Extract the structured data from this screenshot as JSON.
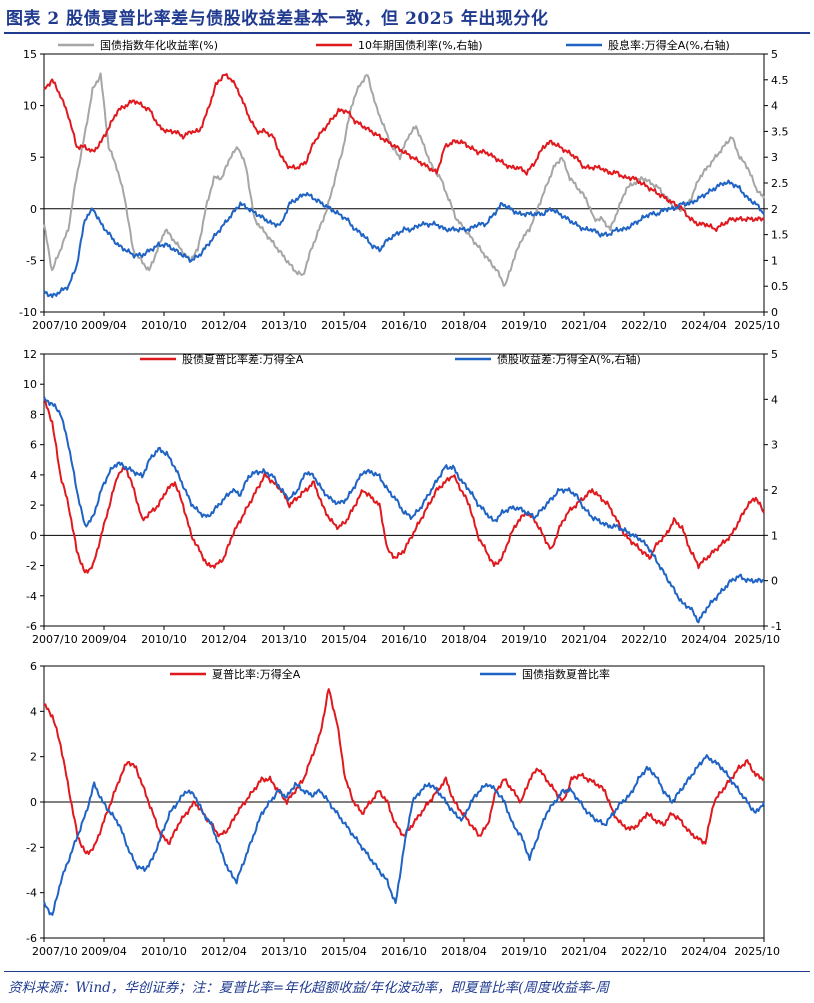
{
  "title": "图表 2   股债夏普比率差与债股收益差基本一致，但 2025 年出现分化",
  "footer": "资料来源：Wind，华创证券；注：夏普比率=年化超额收益/年化波动率，即夏普比率(周度收益率-周",
  "chart_data": [
    {
      "type": "line",
      "x_ticks": [
        "2007/10",
        "2009/04",
        "2010/10",
        "2012/04",
        "2013/10",
        "2015/04",
        "2016/10",
        "2018/04",
        "2019/10",
        "2021/04",
        "2022/10",
        "2024/04",
        "2025/10"
      ],
      "ylim_left": [
        -10,
        15
      ],
      "yticks_left": [
        -10,
        -5,
        0,
        5,
        10,
        15
      ],
      "ylim_right": [
        0,
        5
      ],
      "yticks_right": [
        "0",
        "0.5",
        "1",
        "1.5",
        "2",
        "2.5",
        "3",
        "3.5",
        "4",
        "4.5",
        "5"
      ],
      "colors": {
        "series1": "#a6a6a6",
        "series2": "#e0191e",
        "series3": "#1f63c4"
      },
      "series": [
        {
          "name": "国债指数年化收益率(%)",
          "axis": "left",
          "color_key": "series1",
          "values": [
            -1.5,
            -6,
            -4,
            -2,
            3,
            7,
            11.5,
            13,
            6,
            4,
            1,
            -4,
            -5,
            -6,
            -4,
            -2,
            -3,
            -4,
            -5,
            -4,
            0,
            3,
            3,
            5,
            6,
            4,
            -1,
            -2,
            -3,
            -4,
            -5,
            -6,
            -6.5,
            -4,
            -2,
            0,
            3,
            6,
            10,
            12,
            13,
            10,
            8,
            6,
            5,
            7,
            8,
            6,
            4,
            3,
            1,
            -1,
            -2,
            -3,
            -4,
            -5,
            -6,
            -7.5,
            -5,
            -3,
            -2,
            0,
            2,
            4,
            5,
            3,
            2,
            1,
            -1,
            -1,
            -2,
            0,
            2,
            2.5,
            3,
            2.5,
            2,
            1,
            0,
            0,
            1,
            3,
            4,
            5,
            6,
            7,
            5,
            4,
            2,
            1
          ]
        },
        {
          "name": "10年期国债利率(%,右轴)",
          "axis": "right",
          "color_key": "series2",
          "values": [
            4.3,
            4.5,
            4.2,
            3.8,
            3.2,
            3.2,
            3.1,
            3.3,
            3.6,
            3.9,
            4.0,
            4.1,
            4.0,
            3.9,
            3.6,
            3.5,
            3.5,
            3.4,
            3.5,
            3.5,
            3.9,
            4.4,
            4.6,
            4.5,
            4.2,
            3.8,
            3.5,
            3.5,
            3.4,
            3.0,
            2.8,
            2.8,
            2.9,
            3.3,
            3.5,
            3.7,
            3.9,
            3.9,
            3.7,
            3.6,
            3.5,
            3.4,
            3.3,
            3.2,
            3.1,
            3.0,
            2.9,
            2.8,
            2.7,
            3.2,
            3.3,
            3.3,
            3.2,
            3.1,
            3.1,
            3.0,
            2.9,
            2.8,
            2.8,
            2.7,
            2.9,
            3.2,
            3.3,
            3.2,
            3.1,
            3.0,
            2.8,
            2.8,
            2.8,
            2.7,
            2.7,
            2.6,
            2.6,
            2.5,
            2.4,
            2.3,
            2.2,
            2.1,
            2.0,
            1.8,
            1.7,
            1.7,
            1.6,
            1.7,
            1.8,
            1.8,
            1.8,
            1.8,
            1.8
          ]
        },
        {
          "name": "股息率:万得全A(%,右轴)",
          "axis": "right",
          "color_key": "series3",
          "values": [
            0.4,
            0.3,
            0.4,
            0.5,
            0.9,
            1.8,
            2.0,
            1.7,
            1.5,
            1.3,
            1.2,
            1.1,
            1.1,
            1.2,
            1.3,
            1.3,
            1.2,
            1.1,
            1.0,
            1.1,
            1.3,
            1.5,
            1.7,
            1.9,
            2.1,
            2.0,
            1.9,
            1.8,
            1.7,
            1.7,
            2.1,
            2.2,
            2.3,
            2.2,
            2.1,
            2.0,
            1.9,
            1.8,
            1.6,
            1.5,
            1.3,
            1.2,
            1.4,
            1.5,
            1.6,
            1.6,
            1.7,
            1.7,
            1.7,
            1.6,
            1.6,
            1.6,
            1.6,
            1.7,
            1.7,
            1.9,
            2.1,
            2.0,
            1.9,
            1.9,
            1.9,
            1.9,
            2.0,
            1.9,
            1.8,
            1.7,
            1.6,
            1.6,
            1.5,
            1.5,
            1.6,
            1.6,
            1.7,
            1.8,
            1.9,
            1.9,
            2.0,
            2.0,
            2.1,
            2.1,
            2.2,
            2.3,
            2.4,
            2.5,
            2.5,
            2.4,
            2.2,
            2.1,
            1.9
          ]
        }
      ]
    },
    {
      "type": "line",
      "x_ticks": [
        "2007/10",
        "2009/04",
        "2010/10",
        "2012/04",
        "2013/10",
        "2015/04",
        "2016/10",
        "2018/04",
        "2019/10",
        "2021/04",
        "2022/10",
        "2024/04",
        "2025/10"
      ],
      "ylim_left": [
        -6,
        12
      ],
      "yticks_left": [
        -6,
        -4,
        -2,
        0,
        2,
        4,
        6,
        8,
        10,
        12
      ],
      "ylim_right": [
        -1,
        5
      ],
      "yticks_right": [
        "-1",
        "0",
        "1",
        "2",
        "3",
        "4",
        "5"
      ],
      "colors": {
        "series1": "#e0191e",
        "series2": "#1f63c4"
      },
      "series": [
        {
          "name": "股债夏普比率差:万得全A",
          "axis": "left",
          "color_key": "series1",
          "values": [
            9.0,
            7.5,
            4,
            2,
            -1,
            -2.5,
            -2,
            0,
            2,
            4,
            4.5,
            3,
            1,
            1.5,
            2,
            3,
            3.5,
            2,
            0,
            -1,
            -2,
            -2,
            -1.5,
            0,
            1,
            2,
            3,
            4,
            3.5,
            3,
            2,
            2.5,
            3,
            3.5,
            2,
            1,
            0.5,
            1,
            2,
            3,
            2.5,
            2,
            -1,
            -1.5,
            -1,
            0,
            1,
            2,
            3,
            3.5,
            4,
            3,
            2,
            0,
            -1,
            -2,
            -1.5,
            0,
            1,
            1.5,
            1,
            0,
            -1,
            0.5,
            1.5,
            2,
            2.5,
            3,
            2.5,
            2,
            1,
            0,
            -0.5,
            -1,
            -1.5,
            -0.5,
            0,
            1,
            0.5,
            -1,
            -2,
            -1.5,
            -1,
            -0.5,
            0,
            1,
            2,
            2.5,
            1.5
          ]
        },
        {
          "name": "债股收益差:万得全A(%,右轴)",
          "axis": "right",
          "color_key": "series2",
          "values": [
            4.0,
            3.9,
            3.7,
            3.0,
            2.0,
            1.2,
            1.4,
            2.0,
            2.4,
            2.6,
            2.5,
            2.4,
            2.3,
            2.7,
            2.9,
            2.8,
            2.5,
            2.1,
            1.7,
            1.5,
            1.4,
            1.6,
            1.8,
            2.0,
            1.9,
            2.3,
            2.4,
            2.4,
            2.3,
            2.0,
            1.8,
            2.0,
            2.4,
            2.3,
            2.0,
            1.8,
            1.7,
            1.8,
            2.1,
            2.4,
            2.4,
            2.3,
            2.0,
            1.8,
            1.5,
            1.4,
            1.6,
            1.9,
            2.2,
            2.5,
            2.5,
            2.2,
            2.0,
            1.7,
            1.5,
            1.3,
            1.5,
            1.6,
            1.6,
            1.5,
            1.4,
            1.6,
            1.8,
            2.0,
            2.0,
            1.9,
            1.6,
            1.4,
            1.3,
            1.2,
            1.2,
            1.1,
            1.0,
            0.9,
            0.7,
            0.4,
            0.1,
            -0.2,
            -0.5,
            -0.6,
            -0.9,
            -0.6,
            -0.4,
            -0.2,
            0.0,
            0.1,
            0.0,
            0.0,
            0.0
          ]
        }
      ]
    },
    {
      "type": "line",
      "x_ticks": [
        "2007/10",
        "2009/04",
        "2010/10",
        "2012/04",
        "2013/10",
        "2015/04",
        "2016/10",
        "2018/04",
        "2019/10",
        "2021/04",
        "2022/10",
        "2024/04",
        "2025/10"
      ],
      "ylim_left": [
        -6,
        6
      ],
      "yticks_left": [
        -6,
        -4,
        -2,
        0,
        2,
        4,
        6
      ],
      "colors": {
        "series1": "#e0191e",
        "series2": "#1f63c4"
      },
      "series": [
        {
          "name": "夏普比率:万得全A",
          "axis": "left",
          "color_key": "series1",
          "values": [
            4.3,
            3.8,
            2.5,
            0.5,
            -1.5,
            -2.3,
            -2,
            -1,
            0,
            1,
            1.8,
            1.5,
            0.5,
            -0.5,
            -1.5,
            -1.8,
            -1,
            -0.5,
            0,
            -0.5,
            -1,
            -1.5,
            -1.2,
            -0.5,
            0,
            0.5,
            1,
            1,
            0.5,
            0,
            0.5,
            1,
            2,
            3,
            5,
            3.5,
            1,
            0,
            -0.5,
            0,
            0.5,
            0,
            -1,
            -1.5,
            -1,
            -0.5,
            0,
            0.5,
            1,
            0,
            -0.5,
            -1,
            -1.5,
            -1,
            0.5,
            1,
            0.5,
            0,
            1,
            1.5,
            1,
            0.5,
            0,
            1,
            1.2,
            1,
            0.8,
            0.5,
            -0.5,
            -1,
            -1.2,
            -1,
            -0.5,
            -0.8,
            -1,
            -0.5,
            -0.8,
            -1.3,
            -1.6,
            -1.8,
            0,
            0.5,
            1,
            1.5,
            1.8,
            1.2,
            1.0
          ]
        },
        {
          "name": "国债指数夏普比率",
          "axis": "left",
          "color_key": "series2",
          "values": [
            -4.5,
            -5,
            -3.5,
            -2.5,
            -1.5,
            -0.5,
            0.8,
            0,
            -0.5,
            -1,
            -2,
            -2.8,
            -3,
            -2.5,
            -1.5,
            -0.5,
            0,
            0.5,
            0.3,
            -0.5,
            -1,
            -2,
            -3,
            -3.5,
            -2.5,
            -1.5,
            -0.5,
            0,
            0.5,
            0.2,
            0.8,
            0.5,
            0.3,
            0.5,
            0,
            -0.5,
            -1,
            -1.5,
            -2,
            -2.5,
            -3,
            -3.5,
            -4.5,
            -2,
            0,
            0.5,
            0.8,
            0.5,
            0,
            -0.5,
            -0.8,
            0,
            0.5,
            0.8,
            0.5,
            0,
            -1,
            -1.5,
            -2.5,
            -1.5,
            -0.5,
            0,
            0.5,
            0.5,
            0,
            -0.5,
            -0.8,
            -1,
            -0.5,
            0,
            0.3,
            1,
            1.5,
            1.2,
            0.5,
            0,
            0.5,
            1,
            1.5,
            2,
            1.8,
            1.5,
            1,
            0.5,
            0,
            -0.5,
            0.0
          ]
        }
      ]
    }
  ]
}
